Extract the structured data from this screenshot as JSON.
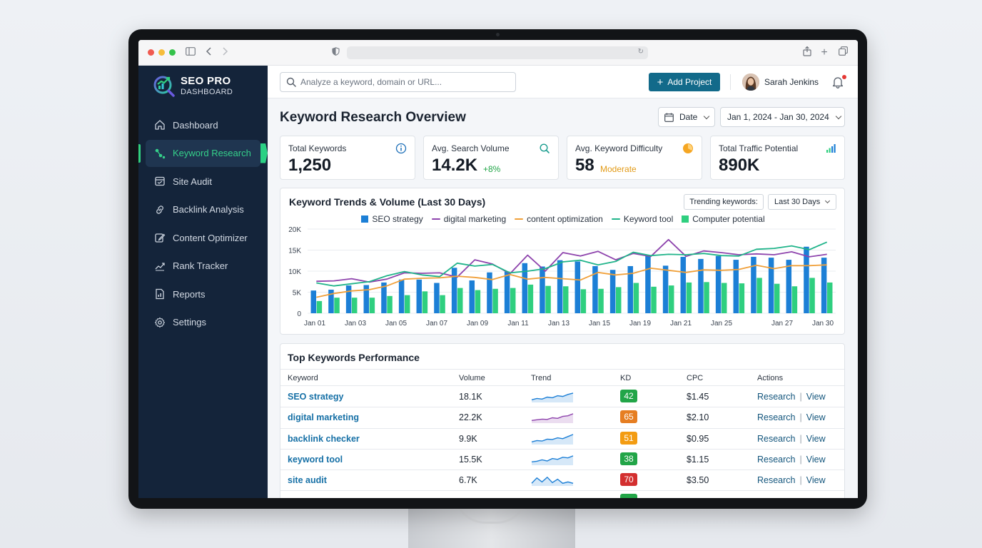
{
  "brand": {
    "title": "SEO PRO",
    "subtitle": "DASHBOARD"
  },
  "sidebar": {
    "items": [
      {
        "label": "Dashboard",
        "icon": "home-icon",
        "active": false
      },
      {
        "label": "Keyword Research",
        "icon": "keyword-research-icon",
        "active": true
      },
      {
        "label": "Site Audit",
        "icon": "site-audit-icon",
        "active": false
      },
      {
        "label": "Backlink Analysis",
        "icon": "link-icon",
        "active": false
      },
      {
        "label": "Content Optimizer",
        "icon": "edit-icon",
        "active": false
      },
      {
        "label": "Rank Tracker",
        "icon": "trend-icon",
        "active": false
      },
      {
        "label": "Reports",
        "icon": "report-icon",
        "active": false
      },
      {
        "label": "Settings",
        "icon": "gear-icon",
        "active": false
      }
    ]
  },
  "topbar": {
    "search_placeholder": "Analyze a keyword, domain or URL...",
    "add_project_label": "Add Project",
    "user_name": "Sarah Jenkins"
  },
  "page": {
    "title": "Keyword Research Overview",
    "date_label": "Date",
    "date_range": "Jan 1, 2024 - Jan 30, 2024"
  },
  "cards": [
    {
      "label": "Total Keywords",
      "value": "1,250",
      "extra": ""
    },
    {
      "label": "Avg. Search Volume",
      "value": "14.2K",
      "extra": "+8%"
    },
    {
      "label": "Avg. Keyword Difficulty",
      "value": "58",
      "extra": "Moderate"
    },
    {
      "label": "Total Traffic Potential",
      "value": "890K",
      "extra": ""
    }
  ],
  "chart_panel": {
    "title": "Keyword Trends & Volume (Last 30 Days)",
    "trending_label": "Trending keywords:",
    "period_label": "Last 30 Days"
  },
  "chart_data": {
    "type": "bar",
    "title": "Keyword Trends & Volume (Last 30 Days)",
    "ylim": [
      0,
      20000
    ],
    "yticks": [
      "0",
      "5K",
      "10K",
      "15K",
      "20K"
    ],
    "xtick_labels": [
      "Jan 01",
      "Jan 03",
      "Jan 05",
      "Jan 07",
      "Jan 09",
      "Jan 11",
      "Jan 13",
      "Jan 15",
      "Jan 19",
      "Jan 21",
      "Jan 25",
      "Jan 27",
      "Jan 30"
    ],
    "legend_position": "top-center",
    "series": [
      {
        "name": "SEO strategy",
        "kind": "bar",
        "color": "#1c7fd6",
        "values": [
          5400,
          5600,
          6600,
          6700,
          7300,
          8000,
          8000,
          7200,
          10800,
          7800,
          9700,
          9900,
          11900,
          11100,
          12600,
          12300,
          11200,
          10300,
          11200,
          13700,
          11300,
          13400,
          12900,
          13600,
          12700,
          13400,
          13200,
          12700,
          15800,
          13200
        ]
      },
      {
        "name": "Computer potential",
        "kind": "bar",
        "color": "#2fcf7f",
        "values": [
          2900,
          3700,
          3700,
          3700,
          4100,
          4300,
          5200,
          4300,
          6000,
          5500,
          5800,
          6000,
          6800,
          6500,
          6400,
          5700,
          5800,
          6200,
          7200,
          6300,
          6600,
          7300,
          7400,
          7200,
          7100,
          8400,
          7000,
          6400,
          8400,
          7300
        ]
      },
      {
        "name": "digital marketing",
        "kind": "line",
        "color": "#8e44ad",
        "values": [
          7600,
          7700,
          8200,
          7400,
          8100,
          9600,
          9500,
          9600,
          8600,
          12700,
          11700,
          9400,
          13800,
          10000,
          14400,
          13600,
          14700,
          12700,
          14200,
          13500,
          17500,
          13500,
          14800,
          14400,
          13900,
          14100,
          13900,
          14600,
          13400,
          14000
        ]
      },
      {
        "name": "content optimization",
        "kind": "line",
        "color": "#f0a03a",
        "values": [
          3800,
          4700,
          5300,
          5600,
          6500,
          8100,
          8300,
          8400,
          8800,
          8500,
          8000,
          9200,
          8100,
          8500,
          8200,
          7900,
          9700,
          9100,
          9500,
          10700,
          10200,
          9700,
          10300,
          10200,
          10400,
          11400,
          10600,
          11300,
          11300,
          11500
        ]
      },
      {
        "name": "Keyword tool",
        "kind": "line",
        "color": "#20b48a",
        "values": [
          7200,
          6500,
          7000,
          7500,
          8900,
          9900,
          9100,
          8700,
          11900,
          11200,
          11600,
          9600,
          10000,
          10600,
          12200,
          12600,
          11500,
          12300,
          14500,
          13700,
          14000,
          13900,
          14200,
          13700,
          13600,
          15200,
          15400,
          16000,
          15100,
          16900
        ]
      }
    ]
  },
  "table": {
    "title": "Top Keywords Performance",
    "columns": [
      "Keyword",
      "Volume",
      "Trend",
      "KD",
      "CPC",
      "Actions"
    ],
    "research_label": "Research",
    "view_label": "View",
    "rows": [
      {
        "keyword": "SEO strategy",
        "volume": "18.1K",
        "kd": "42",
        "kd_color": "#22a548",
        "cpc": "$1.45",
        "trend_color": "#1c7fd6",
        "trend": [
          2,
          3,
          2.5,
          4,
          3.5,
          5,
          4.5,
          6,
          7
        ]
      },
      {
        "keyword": "digital marketing",
        "volume": "22.2K",
        "kd": "65",
        "kd_color": "#e67e22",
        "cpc": "$2.10",
        "trend_color": "#8e44ad",
        "trend": [
          2,
          2.5,
          3,
          2.8,
          4,
          3.6,
          5,
          5.5,
          7
        ]
      },
      {
        "keyword": "backlink checker",
        "volume": "9.9K",
        "kd": "51",
        "kd_color": "#f39c12",
        "cpc": "$0.95",
        "trend_color": "#1c7fd6",
        "trend": [
          2,
          3,
          2.6,
          4,
          3.8,
          5,
          4.4,
          6,
          7.5
        ]
      },
      {
        "keyword": "keyword tool",
        "volume": "15.5K",
        "kd": "38",
        "kd_color": "#22a548",
        "cpc": "$1.15",
        "trend_color": "#1c7fd6",
        "trend": [
          2.5,
          3,
          4,
          3.2,
          5,
          4.4,
          6,
          5.5,
          7
        ]
      },
      {
        "keyword": "site audit",
        "volume": "6.7K",
        "kd": "70",
        "kd_color": "#d32f2f",
        "cpc": "$3.50",
        "trend_color": "#1c7fd6",
        "trend": [
          2,
          6,
          3,
          6.5,
          2.5,
          5,
          2,
          3,
          2
        ]
      }
    ]
  }
}
